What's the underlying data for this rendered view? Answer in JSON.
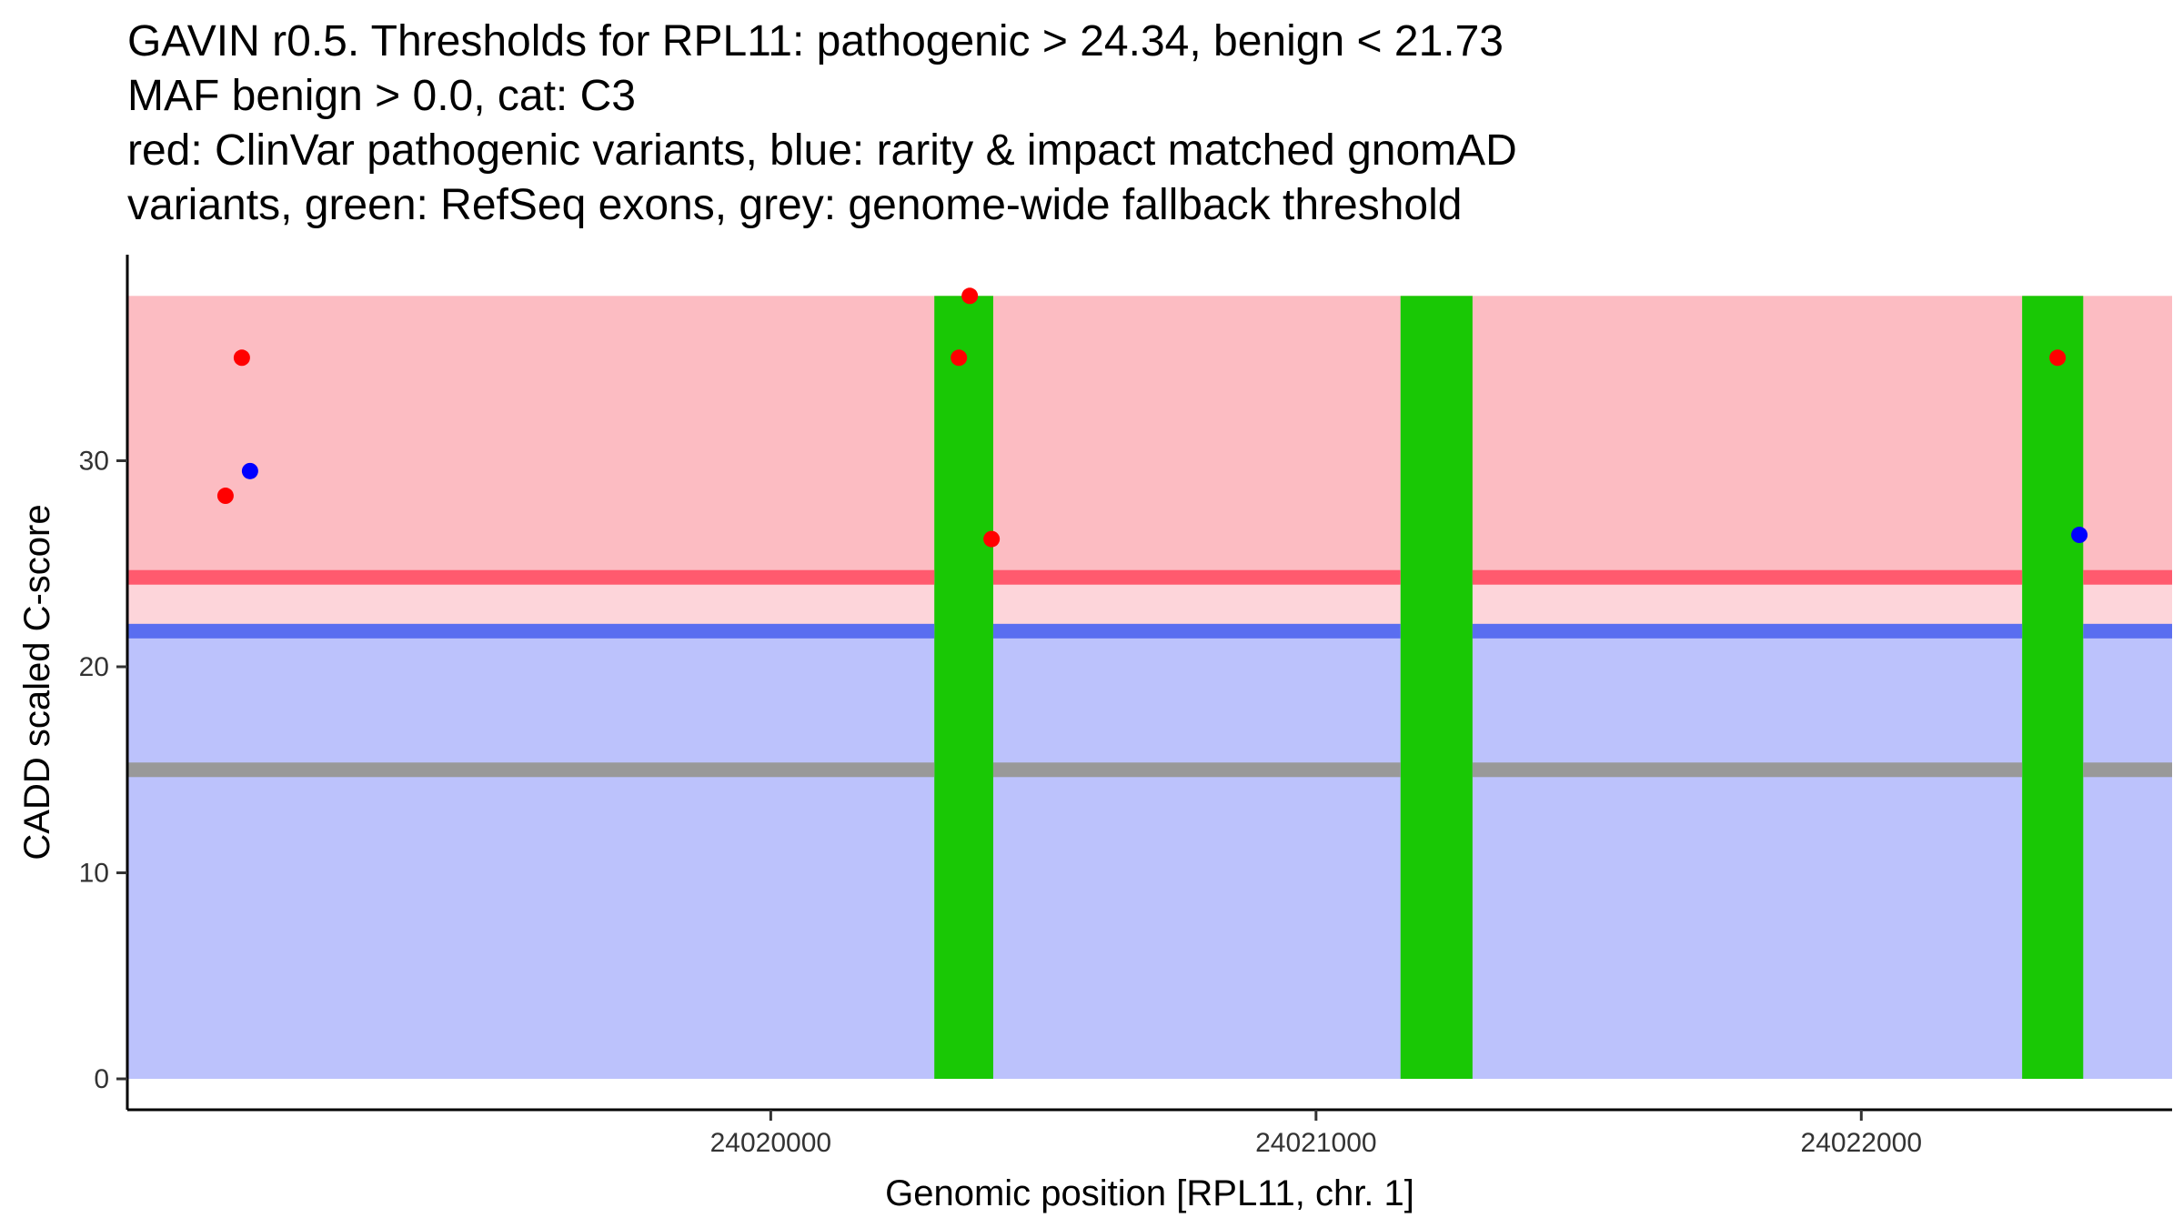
{
  "title_lines": [
    "GAVIN r0.5. Thresholds for RPL11: pathogenic > 24.34, benign < 21.73",
    "MAF benign > 0.0, cat: C3",
    "red: ClinVar pathogenic variants, blue: rarity & impact matched gnomAD",
    "variants, green: RefSeq exons, grey: genome-wide fallback threshold"
  ],
  "chart_data": {
    "type": "scatter",
    "title": "GAVIN r0.5. Thresholds for RPL11: pathogenic > 24.34, benign < 21.73 MAF benign > 0.0, cat: C3 red: ClinVar pathogenic variants, blue: rarity & impact matched gnomAD variants, green: RefSeq exons, grey: genome-wide fallback threshold",
    "xlabel": "Genomic position [RPL11, chr. 1]",
    "ylabel": "CADD scaled C-score",
    "xlim": [
      24018820,
      24022570
    ],
    "ylim": [
      -1.5,
      40
    ],
    "x_ticks": [
      24020000,
      24021000,
      24022000
    ],
    "x_tick_labels": [
      "24020000",
      "24021000",
      "24022000"
    ],
    "y_ticks": [
      0,
      10,
      20,
      30
    ],
    "y_tick_labels": [
      "0",
      "10",
      "20",
      "30"
    ],
    "grid": false,
    "regions": {
      "pathogenic": {
        "from": 24.34,
        "to": 38,
        "color": "#fcbcc2"
      },
      "uncertain": {
        "from": 21.73,
        "to": 24.34,
        "color": "#fdd5da"
      },
      "benign": {
        "from": 0,
        "to": 21.73,
        "color": "#bcc2fc"
      }
    },
    "threshold_lines": [
      {
        "name": "pathogenic threshold",
        "value": 24.34,
        "color": "#ff5a6e"
      },
      {
        "name": "benign threshold",
        "value": 21.73,
        "color": "#5a6ef0"
      },
      {
        "name": "genome-wide fallback threshold",
        "value": 15,
        "color": "#999999"
      }
    ],
    "exons": [
      {
        "start": 24020300,
        "end": 24020408,
        "color": "#19c805"
      },
      {
        "start": 24021155,
        "end": 24021287,
        "color": "#19c805"
      },
      {
        "start": 24022295,
        "end": 24022407,
        "color": "#19c805"
      }
    ],
    "series": [
      {
        "name": "ClinVar pathogenic variants",
        "color": "#ff0000",
        "points": [
          {
            "x": 24019000,
            "y": 28.3
          },
          {
            "x": 24019030,
            "y": 35
          },
          {
            "x": 24020345,
            "y": 35
          },
          {
            "x": 24020365,
            "y": 38
          },
          {
            "x": 24020405,
            "y": 26.2
          },
          {
            "x": 24022360,
            "y": 35
          }
        ]
      },
      {
        "name": "gnomAD rarity & impact matched variants",
        "color": "#0000ff",
        "points": [
          {
            "x": 24019045,
            "y": 29.5
          },
          {
            "x": 24022400,
            "y": 26.4
          }
        ]
      }
    ]
  }
}
